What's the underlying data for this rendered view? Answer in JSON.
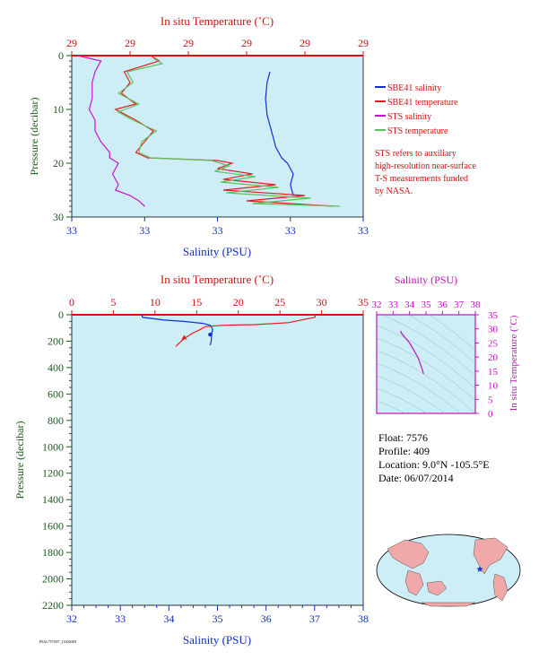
{
  "colors": {
    "plot_bg": "#cdeef7",
    "axis_red": "#e01010",
    "temp_label": "#d01010",
    "sal_label": "#1030c0",
    "pres_label": "#1a5a1a",
    "sbe_sal": "#1030d0",
    "sbe_temp": "#e02020",
    "sts_sal": "#d010d0",
    "sts_temp": "#60c060",
    "ts_mag": "#c010c0"
  },
  "legend": {
    "items": [
      {
        "label": "SBE41 salinity",
        "color": "#1030d0"
      },
      {
        "label": "SBE41 temperature",
        "color": "#e02020"
      },
      {
        "label": "STS salinity",
        "color": "#d010d0"
      },
      {
        "label": "STS temperature",
        "color": "#60c060"
      }
    ],
    "note": [
      "STS refers to auxiliary",
      "high-resolution near-surface",
      "T-S measurements funded",
      "by NASA."
    ]
  },
  "info": {
    "float": "Float: 7576",
    "profile": "Profile: 409",
    "location": "Location: 9.0°N -105.5°E",
    "date": "Date: 06/07/2014"
  },
  "footer_tag": "P0AC7576N7_110040E8",
  "map": {
    "marker_icon": "star-icon"
  },
  "chart_data": [
    {
      "id": "top_profile",
      "type": "line",
      "top_axis_label": "In situ Temperature (˚C)",
      "bottom_axis_label": "Salinity (PSU)",
      "left_axis_label": "Pressure (decibar)",
      "temp_ticks": [
        "29",
        "29",
        "29",
        "29",
        "29",
        "29"
      ],
      "sal_ticks": [
        "33",
        "33",
        "33",
        "33",
        "33"
      ],
      "pressure_ticks": [
        "0",
        "10",
        "20",
        "30"
      ],
      "pressure_range": [
        0,
        30
      ],
      "x_frac_note": "x values given as fraction of axis span (tick labels rounded)",
      "series": [
        {
          "name": "SBE41 salinity",
          "points": [
            [
              0.68,
              3
            ],
            [
              0.67,
              5
            ],
            [
              0.665,
              8
            ],
            [
              0.67,
              11
            ],
            [
              0.68,
              13
            ],
            [
              0.69,
              15
            ],
            [
              0.7,
              17
            ],
            [
              0.72,
              19
            ],
            [
              0.74,
              20
            ],
            [
              0.76,
              22
            ],
            [
              0.75,
              24
            ],
            [
              0.76,
              26
            ]
          ]
        },
        {
          "name": "SBE41 temperature",
          "points": [
            [
              0.27,
              0
            ],
            [
              0.3,
              1
            ],
            [
              0.18,
              3
            ],
            [
              0.2,
              5
            ],
            [
              0.17,
              7
            ],
            [
              0.22,
              9
            ],
            [
              0.15,
              10
            ],
            [
              0.22,
              12
            ],
            [
              0.28,
              14
            ],
            [
              0.25,
              16
            ],
            [
              0.22,
              18
            ],
            [
              0.26,
              19
            ],
            [
              0.5,
              19.5
            ],
            [
              0.55,
              20
            ],
            [
              0.5,
              21
            ],
            [
              0.62,
              22
            ],
            [
              0.52,
              23
            ],
            [
              0.7,
              24
            ],
            [
              0.52,
              25
            ],
            [
              0.8,
              26
            ],
            [
              0.6,
              27
            ],
            [
              0.9,
              28
            ]
          ]
        },
        {
          "name": "STS salinity",
          "points": [
            [
              0.02,
              0
            ],
            [
              0.1,
              1
            ],
            [
              0.08,
              3
            ],
            [
              0.07,
              5
            ],
            [
              0.07,
              8
            ],
            [
              0.06,
              10
            ],
            [
              0.08,
              12
            ],
            [
              0.08,
              14
            ],
            [
              0.1,
              16
            ],
            [
              0.13,
              18
            ],
            [
              0.13,
              19
            ],
            [
              0.16,
              20
            ],
            [
              0.15,
              21
            ],
            [
              0.14,
              22
            ],
            [
              0.16,
              24
            ],
            [
              0.15,
              25
            ],
            [
              0.2,
              26
            ],
            [
              0.23,
              27
            ],
            [
              0.25,
              28
            ]
          ]
        },
        {
          "name": "STS temperature",
          "points": [
            [
              0.28,
              0.5
            ],
            [
              0.31,
              1.5
            ],
            [
              0.19,
              3
            ],
            [
              0.21,
              5
            ],
            [
              0.16,
              7
            ],
            [
              0.23,
              9
            ],
            [
              0.16,
              10.5
            ],
            [
              0.21,
              12
            ],
            [
              0.29,
              14
            ],
            [
              0.24,
              16
            ],
            [
              0.23,
              18
            ],
            [
              0.27,
              19
            ],
            [
              0.48,
              19.5
            ],
            [
              0.54,
              20.5
            ],
            [
              0.49,
              21.5
            ],
            [
              0.63,
              22.5
            ],
            [
              0.51,
              23.5
            ],
            [
              0.71,
              24.5
            ],
            [
              0.53,
              25.5
            ],
            [
              0.82,
              26.5
            ],
            [
              0.62,
              27.5
            ],
            [
              0.92,
              28
            ]
          ]
        }
      ]
    },
    {
      "id": "main_profile",
      "type": "line",
      "top_axis_label": "In situ Temperature (˚C)",
      "bottom_axis_label": "Salinity (PSU)",
      "left_axis_label": "Pressure (decibar)",
      "temp_ticks": [
        "0",
        "5",
        "10",
        "15",
        "20",
        "25",
        "30",
        "35"
      ],
      "temp_range": [
        0,
        35
      ],
      "sal_ticks": [
        "32",
        "33",
        "34",
        "35",
        "36",
        "37",
        "38"
      ],
      "sal_range": [
        32,
        38
      ],
      "pressure_ticks": [
        "0",
        "200",
        "400",
        "600",
        "800",
        "1000",
        "1200",
        "1400",
        "1600",
        "1800",
        "2000",
        "2200"
      ],
      "pressure_range": [
        0,
        2200
      ],
      "series": [
        {
          "name": "SBE41 salinity",
          "x_units": "PSU",
          "points": [
            [
              33.45,
              0
            ],
            [
              33.45,
              10
            ],
            [
              33.46,
              20
            ],
            [
              33.9,
              40
            ],
            [
              34.3,
              50
            ],
            [
              34.7,
              65
            ],
            [
              34.85,
              80
            ],
            [
              34.9,
              110
            ],
            [
              34.88,
              150
            ],
            [
              34.87,
              200
            ],
            [
              34.85,
              230
            ]
          ]
        },
        {
          "name": "SBE41 temperature",
          "x_units": "C",
          "points": [
            [
              29.3,
              0
            ],
            [
              29.2,
              20
            ],
            [
              26.0,
              60
            ],
            [
              22.0,
              75
            ],
            [
              18.0,
              80
            ],
            [
              16.0,
              90
            ],
            [
              15.5,
              110
            ],
            [
              14.5,
              140
            ],
            [
              13.5,
              180
            ],
            [
              12.8,
              220
            ],
            [
              12.5,
              240
            ]
          ]
        }
      ]
    },
    {
      "id": "ts_diagram",
      "type": "line",
      "top_axis_label": "Salinity (PSU)",
      "right_axis_label": "In situ Temperature (˚C)",
      "sal_ticks": [
        "32",
        "33",
        "34",
        "35",
        "36",
        "37",
        "38"
      ],
      "sal_range": [
        32,
        38
      ],
      "temp_ticks": [
        "0",
        "5",
        "10",
        "15",
        "20",
        "25",
        "30",
        "35"
      ],
      "temp_range": [
        0,
        35
      ],
      "series": [
        {
          "name": "T-S",
          "points": [
            [
              33.45,
              29.3
            ],
            [
              33.5,
              28.5
            ],
            [
              34.0,
              25
            ],
            [
              34.5,
              20
            ],
            [
              34.75,
              16
            ],
            [
              34.85,
              14
            ]
          ]
        }
      ]
    }
  ]
}
